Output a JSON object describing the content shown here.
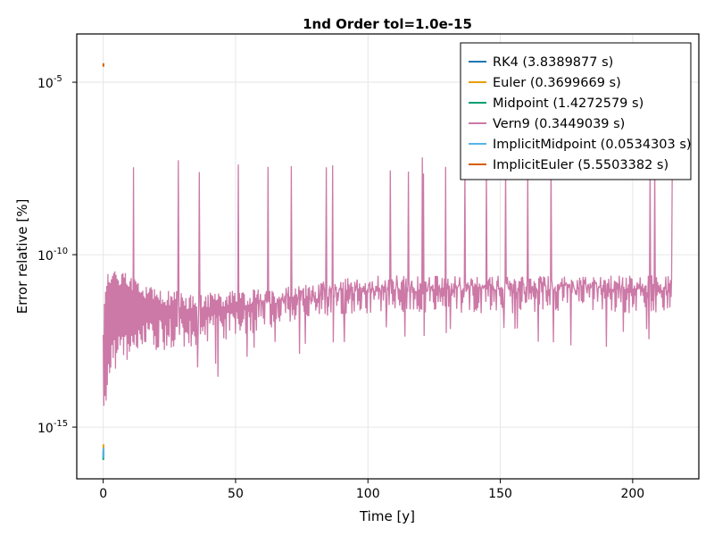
{
  "chart_data": {
    "type": "line",
    "title": "1nd Order tol=1.0e-15",
    "xlabel": "Time [y]",
    "ylabel": "Error relative [%]",
    "yscale": "log10",
    "xlim": [
      -10,
      225
    ],
    "ylim_log10": [
      -16.5,
      -3.6
    ],
    "x_ticks": [
      0,
      50,
      100,
      150,
      200
    ],
    "x_tick_labels": [
      "0",
      "50",
      "100",
      "150",
      "200"
    ],
    "y_ticks_log10": [
      -15,
      -10,
      -5
    ],
    "y_tick_labels": [
      "10",
      "10",
      "10"
    ],
    "y_tick_exponents": [
      "-15",
      "-10",
      "-5"
    ],
    "grid": true,
    "legend_position": "top-right",
    "series": [
      {
        "name": "RK4 (3.8389877 s)",
        "color": "#1f77b4",
        "x": [
          0.0,
          0.1
        ],
        "log10_y": [
          -15.9,
          -15.6
        ]
      },
      {
        "name": "Euler (0.3699669 s)",
        "color": "#e69f00",
        "x": [
          0.0,
          0.1
        ],
        "log10_y": [
          -15.8,
          -15.5
        ]
      },
      {
        "name": "Midpoint (1.4272579 s)",
        "color": "#009e73",
        "x": [
          0.0,
          0.1
        ],
        "log10_y": [
          -15.95,
          -15.7
        ]
      },
      {
        "name": "Vern9 (0.3449039 s)",
        "color": "#cc79a7",
        "trend_x": [
          0,
          1,
          3,
          10,
          20,
          30,
          40,
          50,
          60,
          80,
          100,
          120,
          150,
          180,
          200,
          215
        ],
        "trend_log10_upper": [
          -12.0,
          -10.5,
          -10.3,
          -10.6,
          -10.9,
          -11.1,
          -11.1,
          -11.0,
          -11.0,
          -10.8,
          -10.6,
          -10.6,
          -10.6,
          -10.6,
          -10.6,
          -10.6
        ],
        "trend_log10_lower": [
          -15.5,
          -14.5,
          -13.4,
          -13.0,
          -12.8,
          -12.7,
          -12.6,
          -12.5,
          -12.2,
          -11.8,
          -11.7,
          -11.7,
          -11.7,
          -11.7,
          -11.7,
          -11.7
        ],
        "spike_peak_log10": -7.1,
        "x_max": 215
      },
      {
        "name": "ImplicitMidpoint (0.0534303 s)",
        "color": "#56b4e9",
        "x": [
          0.0,
          0.1
        ],
        "log10_y": [
          -15.9,
          -15.6
        ]
      },
      {
        "name": "ImplicitEuler (5.5503382 s)",
        "color": "#d55e00",
        "x": [
          0.05,
          0.08
        ],
        "log10_y": [
          -4.55,
          -4.45
        ]
      }
    ]
  }
}
